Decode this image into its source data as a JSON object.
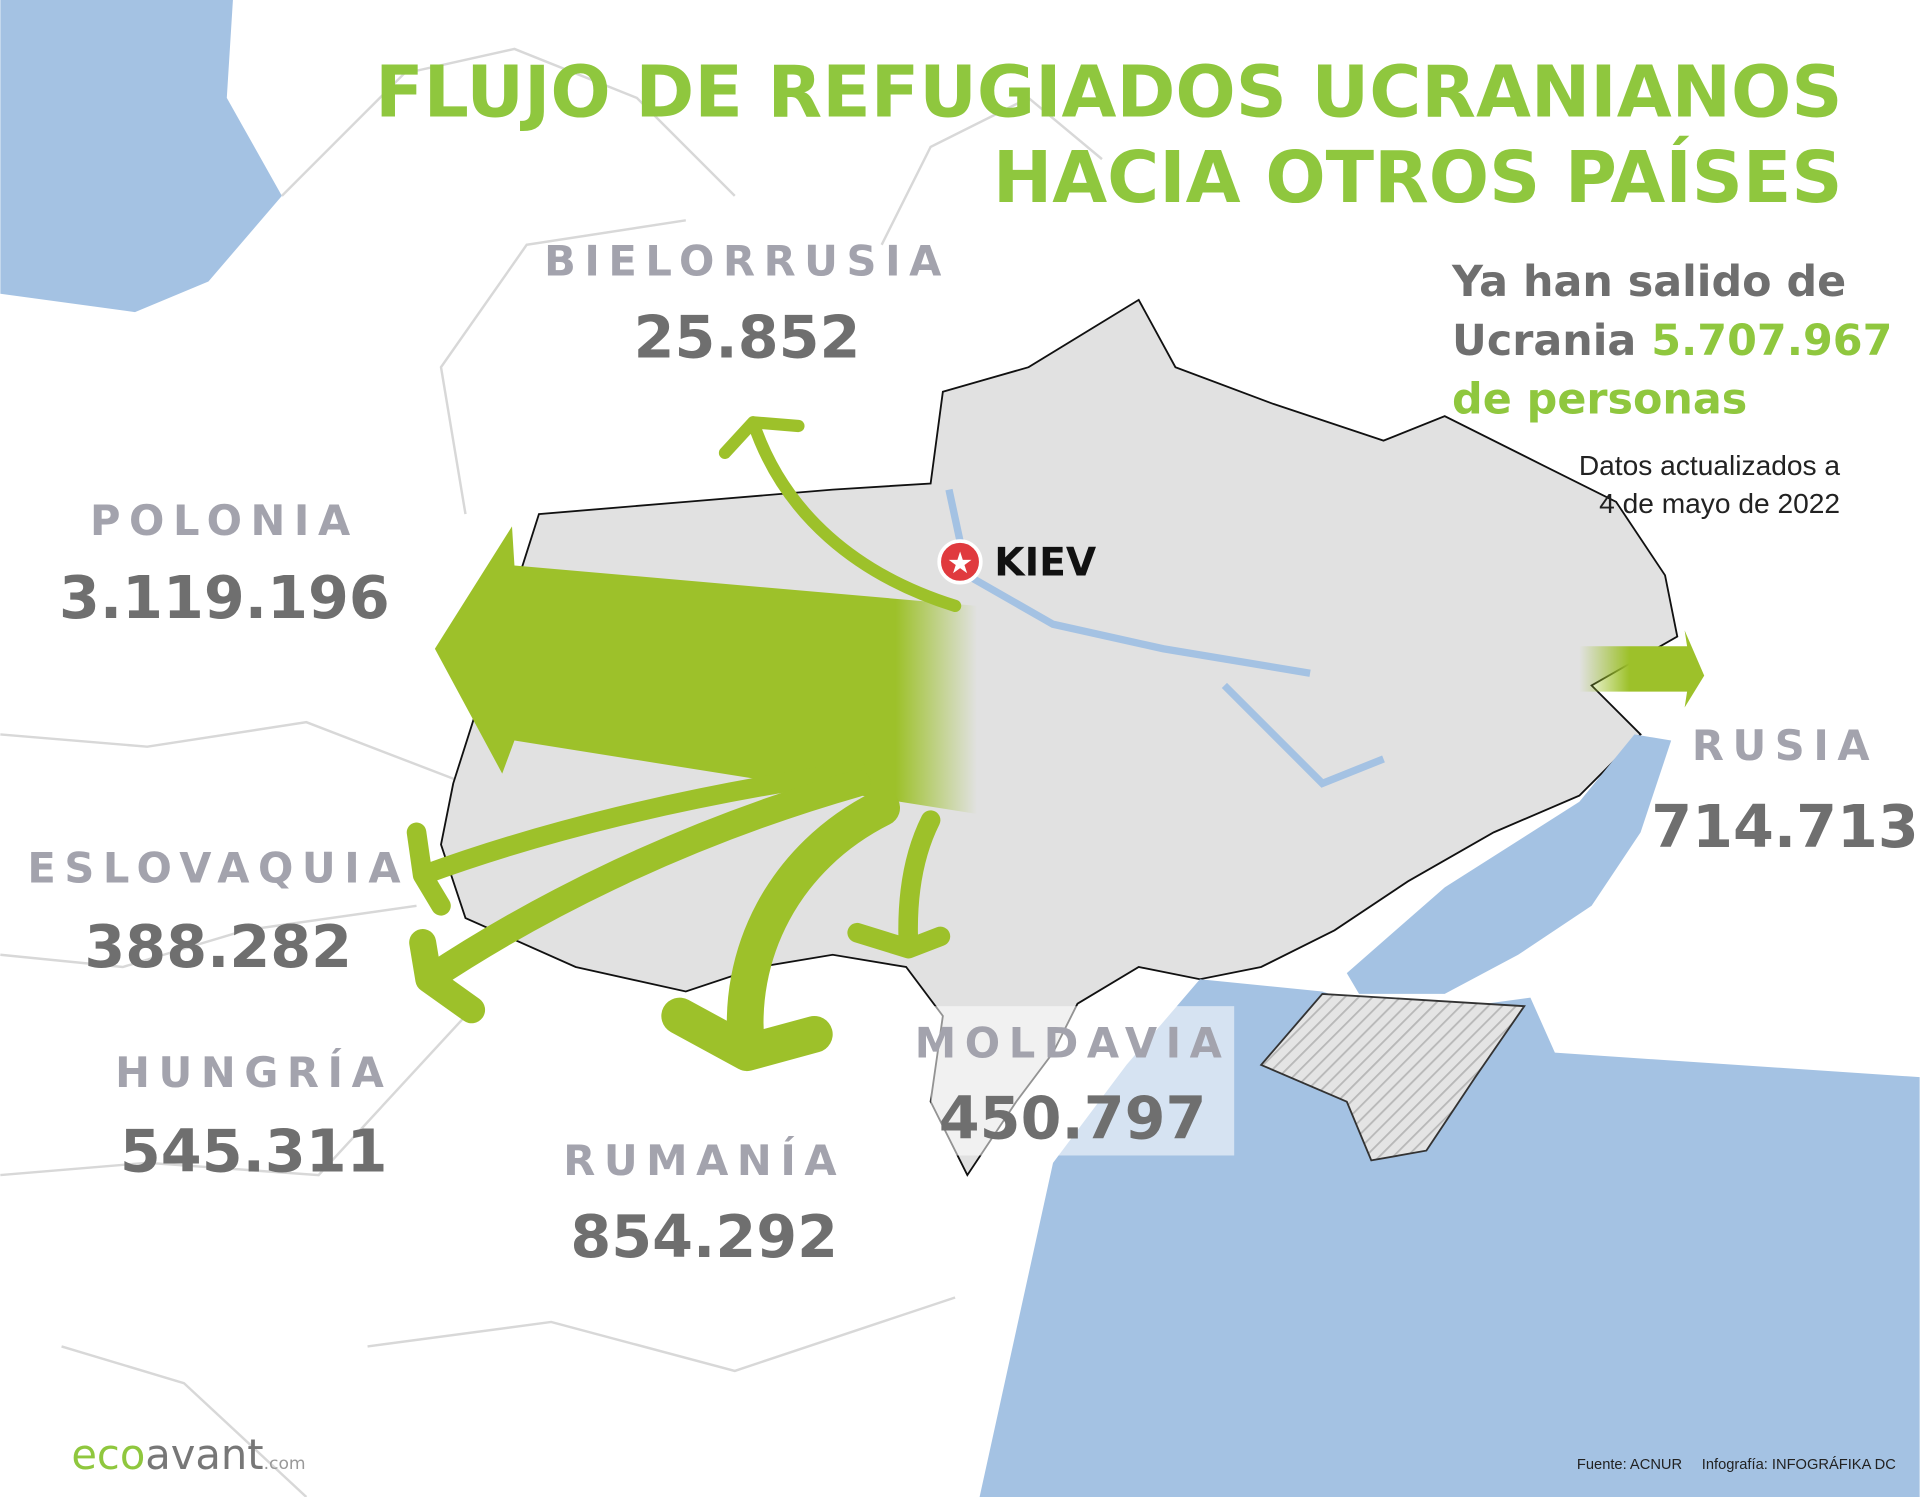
{
  "title": {
    "line1": "FLUJO DE REFUGIADOS UCRANIANOS",
    "line2": "HACIA OTROS PAÍSES"
  },
  "summary": {
    "line1": "Ya han salido de",
    "line2_prefix": "Ucrania ",
    "total": "5.707.967",
    "line3": "de personas"
  },
  "note": {
    "line1": "Datos actualizados a",
    "line2": "4 de mayo de 2022"
  },
  "capital": {
    "name": "KIEV",
    "icon": "red-star-marker-icon"
  },
  "countries": [
    {
      "name": "BIELORRUSIA",
      "value": "25.852"
    },
    {
      "name": "POLONIA",
      "value": "3.119.196"
    },
    {
      "name": "ESLOVAQUIA",
      "value": "388.282"
    },
    {
      "name": "HUNGRÍA",
      "value": "545.311"
    },
    {
      "name": "RUMANÍA",
      "value": "854.292"
    },
    {
      "name": "MOLDAVIA",
      "value": "450.797"
    },
    {
      "name": "RUSIA",
      "value": "714.713"
    }
  ],
  "footer": {
    "source": "Fuente: ACNUR",
    "credit": "Infografía: INFOGRÁFIKA DC"
  },
  "logo": {
    "eco": "eco",
    "avant": "avant",
    ".com": ".com"
  },
  "colors": {
    "accent": "#9dc12a",
    "sea": "#a4c2e3",
    "ukraine": "#e1e1e1",
    "title": "#8fc73e"
  }
}
